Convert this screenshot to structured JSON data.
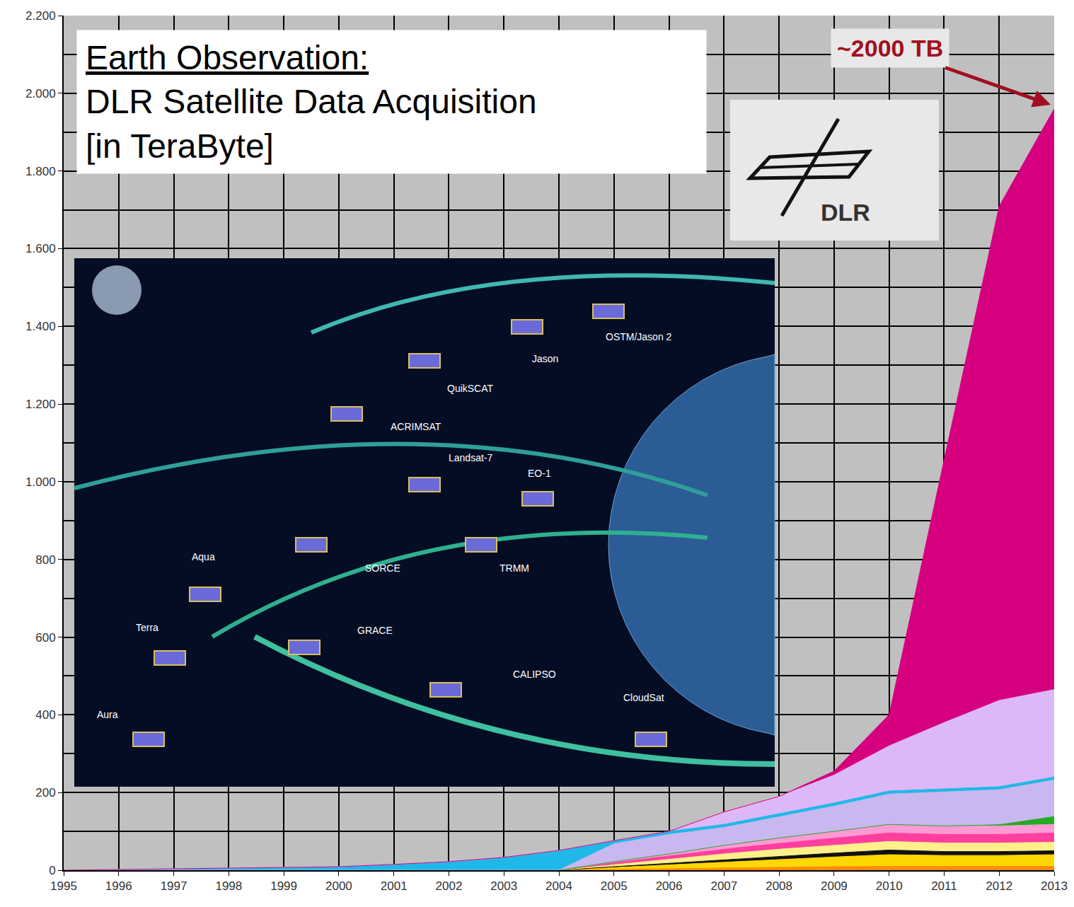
{
  "chart_data": {
    "type": "area",
    "title": "Earth Observation:",
    "subtitle": "DLR Satellite Data Acquisition [in TeraByte]",
    "annotations": [
      "~2000 TB",
      "DLR",
      "OSTM/Jason 2",
      "Jason",
      "QuikSCAT",
      "ACRIMSAT",
      "Landsat-7",
      "EO-1",
      "SORCE",
      "TRMM",
      "Aqua",
      "Terra",
      "GRACE",
      "CALIPSO",
      "CloudSat",
      "Aura"
    ],
    "stacked": true,
    "grid": true,
    "x": [
      1995,
      1996,
      1997,
      1998,
      1999,
      2000,
      2001,
      2002,
      2003,
      2004,
      2005,
      2006,
      2007,
      2008,
      2009,
      2010,
      2011,
      2012,
      2013
    ],
    "xlim": [
      1995,
      2013
    ],
    "xticks": [
      1995,
      1996,
      1997,
      1998,
      1999,
      2000,
      2001,
      2002,
      2003,
      2004,
      2005,
      2006,
      2007,
      2008,
      2009,
      2010,
      2011,
      2012,
      2013
    ],
    "ylim": [
      0,
      2200
    ],
    "yticks": [
      0,
      200,
      400,
      600,
      800,
      {
        "value": 1000,
        "label": "1.000"
      },
      {
        "value": 1200,
        "label": "1.200"
      },
      {
        "value": 1400,
        "label": "1.400"
      },
      {
        "value": 1600,
        "label": "1.600"
      },
      {
        "value": 1800,
        "label": "1.800"
      },
      {
        "value": 2000,
        "label": "2.000"
      },
      {
        "value": 2200,
        "label": "2.200"
      }
    ],
    "series": [
      {
        "color": "#ff8c00",
        "values": [
          0,
          0,
          0,
          0,
          0,
          0,
          0,
          0,
          0,
          0,
          2,
          4,
          6,
          8,
          9,
          10,
          10,
          10,
          10
        ]
      },
      {
        "color": "#ffd700",
        "values": [
          0,
          0,
          0,
          0,
          0,
          0,
          0,
          0,
          0,
          0,
          5,
          10,
          15,
          20,
          25,
          30,
          28,
          28,
          30
        ]
      },
      {
        "color": "#111111",
        "values": [
          0,
          0,
          0,
          0,
          0,
          0,
          0,
          0,
          0,
          0,
          2,
          4,
          6,
          8,
          10,
          12,
          10,
          10,
          10
        ]
      },
      {
        "color": "#fff08a",
        "values": [
          0,
          0,
          0,
          0,
          0,
          0,
          0,
          0,
          0,
          0,
          5,
          10,
          15,
          18,
          20,
          22,
          22,
          22,
          22
        ]
      },
      {
        "color": "#ff3fa0",
        "values": [
          0,
          0,
          0,
          0,
          0,
          0,
          0,
          0,
          0,
          0,
          5,
          8,
          12,
          15,
          18,
          22,
          22,
          22,
          24
        ]
      },
      {
        "color": "#ff9ad5",
        "values": [
          0,
          0,
          0,
          0,
          0,
          0,
          0,
          0,
          0,
          0,
          3,
          6,
          10,
          14,
          18,
          22,
          22,
          22,
          22
        ]
      },
      {
        "color": "#22aa22",
        "values": [
          0,
          0,
          0,
          0,
          0,
          0,
          0,
          0,
          0,
          0,
          0,
          0,
          0,
          0,
          0,
          0,
          0,
          3,
          20
        ]
      },
      {
        "color": "#c9b8f0",
        "values": [
          0,
          0,
          0,
          0,
          0,
          0,
          0,
          0,
          0,
          0,
          46,
          50,
          46,
          55,
          65,
          78,
          88,
          90,
          94
        ]
      },
      {
        "color": "#1fb8e8",
        "values": [
          0,
          2,
          4,
          5,
          7,
          9,
          15,
          22,
          33,
          51,
          8,
          8,
          8,
          8,
          8,
          8,
          8,
          8,
          8
        ]
      },
      {
        "color": "#dcb8f8",
        "values": [
          0,
          0,
          0,
          0,
          0,
          0,
          0,
          0,
          0,
          0,
          0,
          0,
          32,
          44,
          72,
          116,
          170,
          222,
          225
        ]
      },
      {
        "color": "#d6007f",
        "values": [
          0,
          0,
          0,
          0,
          0,
          0,
          0,
          0,
          0,
          0,
          0,
          0,
          0,
          0,
          10,
          80,
          676,
          1272,
          1495
        ]
      }
    ]
  }
}
